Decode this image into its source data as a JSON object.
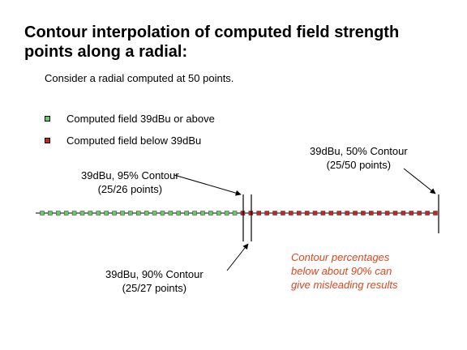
{
  "title": "Contour interpolation of computed field strength points along a radial:",
  "subtitle": "Consider a radial computed at 50 points.",
  "legend": [
    {
      "label": "Computed field 39dBu or above",
      "color": "#66cc66"
    },
    {
      "label": "Computed field below 39dBu",
      "color": "#cc2222"
    }
  ],
  "radial": {
    "total_points": 50,
    "points_above": 25,
    "above_color": "#66cc66",
    "below_color": "#cc2222"
  },
  "contours": {
    "c95": {
      "line1": "39dBu, 95% Contour",
      "line2": "(25/26 points)"
    },
    "c90": {
      "line1": "39dBu, 90% Contour",
      "line2": "(25/27 points)"
    },
    "c50": {
      "line1": "39dBu, 50% Contour",
      "line2": "(25/50 points)"
    }
  },
  "note": {
    "line1": "Contour percentages",
    "line2": "below about 90% can",
    "line3": "give misleading results",
    "color": "#e0441c"
  }
}
